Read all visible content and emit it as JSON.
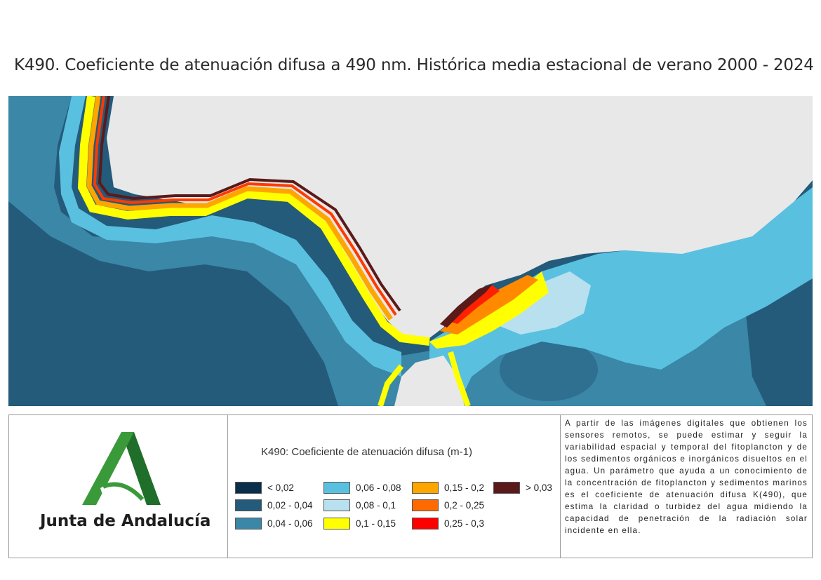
{
  "title": "K490. Coeficiente de atenuación difusa a 490 nm. Histórica media estacional de  verano 2000 - 2024",
  "organization": "Junta de Andalucía",
  "legend": {
    "title": "K490: Coeficiente de atenuación difusa (m-1)",
    "items": [
      {
        "label": "< 0,02",
        "color": "#0b2e4a"
      },
      {
        "label": "0,02 - 0,04",
        "color": "#245a7a"
      },
      {
        "label": "0,04 - 0,06",
        "color": "#3a87a8"
      },
      {
        "label": "0,06 - 0,08",
        "color": "#5ac0e0"
      },
      {
        "label": "0,08 - 0,1",
        "color": "#b8e0ee"
      },
      {
        "label": "0,1 - 0,15",
        "color": "#ffff00"
      },
      {
        "label": "0,15 - 0,2",
        "color": "#ffa500"
      },
      {
        "label": "0,2 - 0,25",
        "color": "#ff6a00"
      },
      {
        "label": "0,25 - 0,3",
        "color": "#ff0000"
      },
      {
        "label": "> 0,03",
        "color": "#5a1a1a"
      }
    ]
  },
  "description": "A partir de las imágenes digitales que obtienen los sensores remotos, se puede estimar y seguir la variabilidad espacial y temporal del fitoplancton y de los sedimentos orgánicos e inorgánicos disueltos en el agua. Un parámetro que ayuda a un conocimiento de la concentración de fitoplancton y sedimentos marinos es el coeficiente de atenuación difusa K(490), que estima la claridad o turbidez del agua midiendo la capacidad de penetración de la radiación solar incidente en ella.",
  "colors": {
    "land": "#e8e8e8",
    "logo_green": "#3a8f3a",
    "logo_dark_green": "#1f6e2a"
  }
}
